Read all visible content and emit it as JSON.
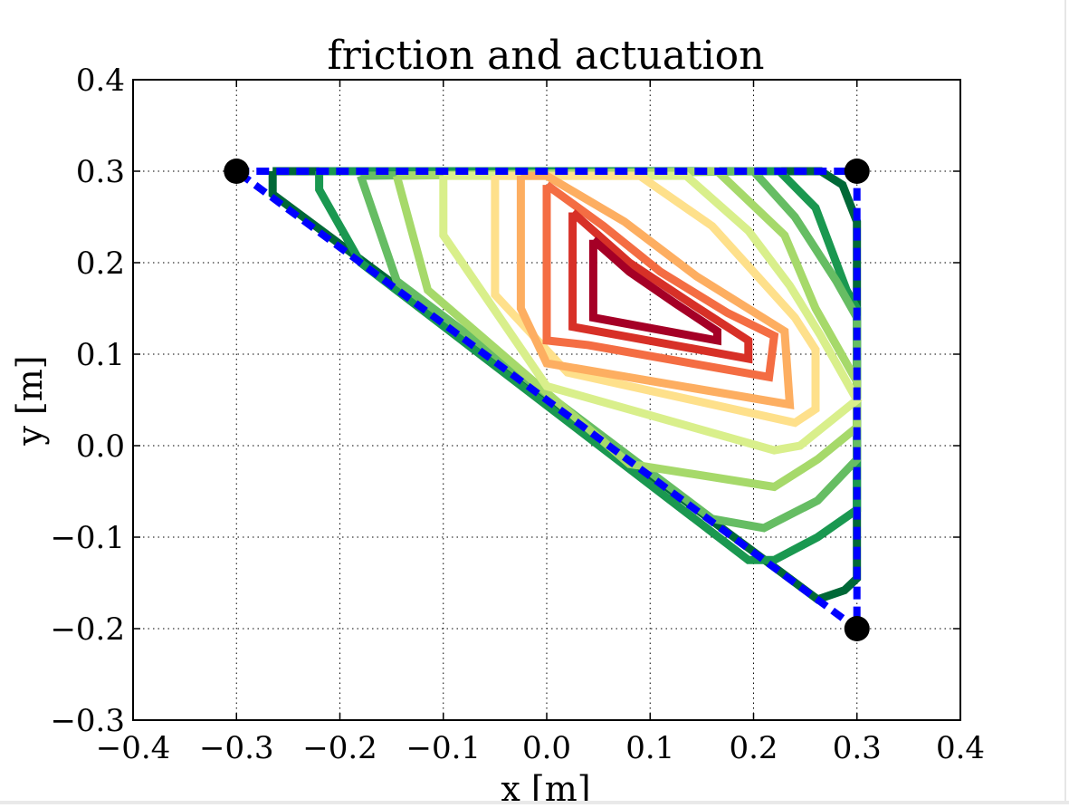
{
  "chart_data": {
    "type": "contour",
    "title": "friction and actuation",
    "xlabel": "x [m]",
    "ylabel": "y [m]",
    "xlim": [
      -0.4,
      0.4
    ],
    "ylim": [
      -0.3,
      0.4
    ],
    "xticks": [
      -0.4,
      -0.3,
      -0.2,
      -0.1,
      0.0,
      0.1,
      0.2,
      0.3,
      0.4
    ],
    "yticks": [
      -0.3,
      -0.2,
      -0.1,
      0.0,
      0.1,
      0.2,
      0.3,
      0.4
    ],
    "xtick_labels": [
      "−0.4",
      "−0.3",
      "−0.2",
      "−0.1",
      "0.0",
      "0.1",
      "0.2",
      "0.3",
      "0.4"
    ],
    "ytick_labels": [
      "−0.3",
      "−0.2",
      "−0.1",
      "0.0",
      "0.1",
      "0.2",
      "0.3",
      "0.4"
    ],
    "grid": true,
    "vertices": [
      [
        -0.3,
        0.3
      ],
      [
        0.3,
        0.3
      ],
      [
        0.3,
        -0.2
      ]
    ],
    "vertex_color": "#000000",
    "boundary": {
      "color": "#0000ff",
      "style": "dashed",
      "points": [
        [
          -0.3,
          0.3
        ],
        [
          0.3,
          0.3
        ],
        [
          0.3,
          -0.2
        ],
        [
          -0.3,
          0.3
        ]
      ]
    },
    "contours": [
      {
        "color": "#006837",
        "points": [
          [
            -0.265,
            0.3
          ],
          [
            0.265,
            0.3
          ],
          [
            0.286,
            0.285
          ],
          [
            0.3,
            0.245
          ],
          [
            0.3,
            -0.145
          ],
          [
            0.288,
            -0.158
          ],
          [
            0.262,
            -0.168
          ],
          [
            -0.265,
            0.275
          ],
          [
            -0.265,
            0.3
          ]
        ]
      },
      {
        "color": "#1a9850",
        "points": [
          [
            -0.22,
            0.3
          ],
          [
            0.225,
            0.3
          ],
          [
            0.26,
            0.26
          ],
          [
            0.29,
            0.17
          ],
          [
            0.3,
            0.15
          ],
          [
            0.3,
            -0.07
          ],
          [
            0.262,
            -0.1
          ],
          [
            0.22,
            -0.125
          ],
          [
            0.195,
            -0.125
          ],
          [
            -0.18,
            0.2
          ],
          [
            -0.22,
            0.28
          ],
          [
            -0.22,
            0.3
          ]
        ]
      },
      {
        "color": "#66bd63",
        "points": [
          [
            -0.18,
            0.295
          ],
          [
            0.2,
            0.3
          ],
          [
            0.24,
            0.25
          ],
          [
            0.28,
            0.18
          ],
          [
            0.3,
            0.14
          ],
          [
            0.3,
            -0.015
          ],
          [
            0.262,
            -0.06
          ],
          [
            0.21,
            -0.09
          ],
          [
            0.16,
            -0.08
          ],
          [
            -0.145,
            0.18
          ],
          [
            -0.18,
            0.295
          ]
        ]
      },
      {
        "color": "#a6d96a",
        "points": [
          [
            -0.145,
            0.295
          ],
          [
            0.165,
            0.3
          ],
          [
            0.23,
            0.23
          ],
          [
            0.26,
            0.15
          ],
          [
            0.3,
            0.07
          ],
          [
            0.3,
            0.02
          ],
          [
            0.262,
            -0.015
          ],
          [
            0.22,
            -0.045
          ],
          [
            0.08,
            -0.02
          ],
          [
            -0.115,
            0.17
          ],
          [
            -0.145,
            0.295
          ]
        ]
      },
      {
        "color": "#d9ef8b",
        "points": [
          [
            -0.1,
            0.295
          ],
          [
            0.135,
            0.295
          ],
          [
            0.195,
            0.235
          ],
          [
            0.235,
            0.175
          ],
          [
            0.265,
            0.12
          ],
          [
            0.3,
            0.05
          ],
          [
            0.245,
            0.0
          ],
          [
            0.22,
            -0.005
          ],
          [
            0.0,
            0.065
          ],
          [
            -0.1,
            0.23
          ],
          [
            -0.1,
            0.295
          ]
        ]
      },
      {
        "color": "#fee08b",
        "points": [
          [
            -0.05,
            0.295
          ],
          [
            0.09,
            0.295
          ],
          [
            0.16,
            0.24
          ],
          [
            0.24,
            0.14
          ],
          [
            0.26,
            0.105
          ],
          [
            0.26,
            0.04
          ],
          [
            0.24,
            0.025
          ],
          [
            0.02,
            0.08
          ],
          [
            -0.05,
            0.165
          ],
          [
            -0.05,
            0.295
          ]
        ]
      },
      {
        "color": "#fdae61",
        "points": [
          [
            -0.025,
            0.295
          ],
          [
            0.0,
            0.295
          ],
          [
            0.075,
            0.245
          ],
          [
            0.145,
            0.185
          ],
          [
            0.23,
            0.125
          ],
          [
            0.235,
            0.045
          ],
          [
            0.0,
            0.09
          ],
          [
            -0.025,
            0.15
          ],
          [
            -0.025,
            0.295
          ]
        ]
      },
      {
        "color": "#f46d43",
        "points": [
          [
            0.0,
            0.285
          ],
          [
            0.055,
            0.24
          ],
          [
            0.11,
            0.19
          ],
          [
            0.175,
            0.145
          ],
          [
            0.22,
            0.12
          ],
          [
            0.215,
            0.075
          ],
          [
            0.04,
            0.11
          ],
          [
            0.0,
            0.115
          ],
          [
            0.0,
            0.285
          ]
        ]
      },
      {
        "color": "#d73027",
        "points": [
          [
            0.025,
            0.255
          ],
          [
            0.08,
            0.2
          ],
          [
            0.14,
            0.155
          ],
          [
            0.195,
            0.115
          ],
          [
            0.195,
            0.095
          ],
          [
            0.025,
            0.13
          ],
          [
            0.025,
            0.255
          ]
        ]
      },
      {
        "color": "#a50026",
        "points": [
          [
            0.045,
            0.225
          ],
          [
            0.08,
            0.19
          ],
          [
            0.125,
            0.155
          ],
          [
            0.165,
            0.125
          ],
          [
            0.165,
            0.115
          ],
          [
            0.045,
            0.14
          ],
          [
            0.045,
            0.225
          ]
        ]
      }
    ]
  }
}
